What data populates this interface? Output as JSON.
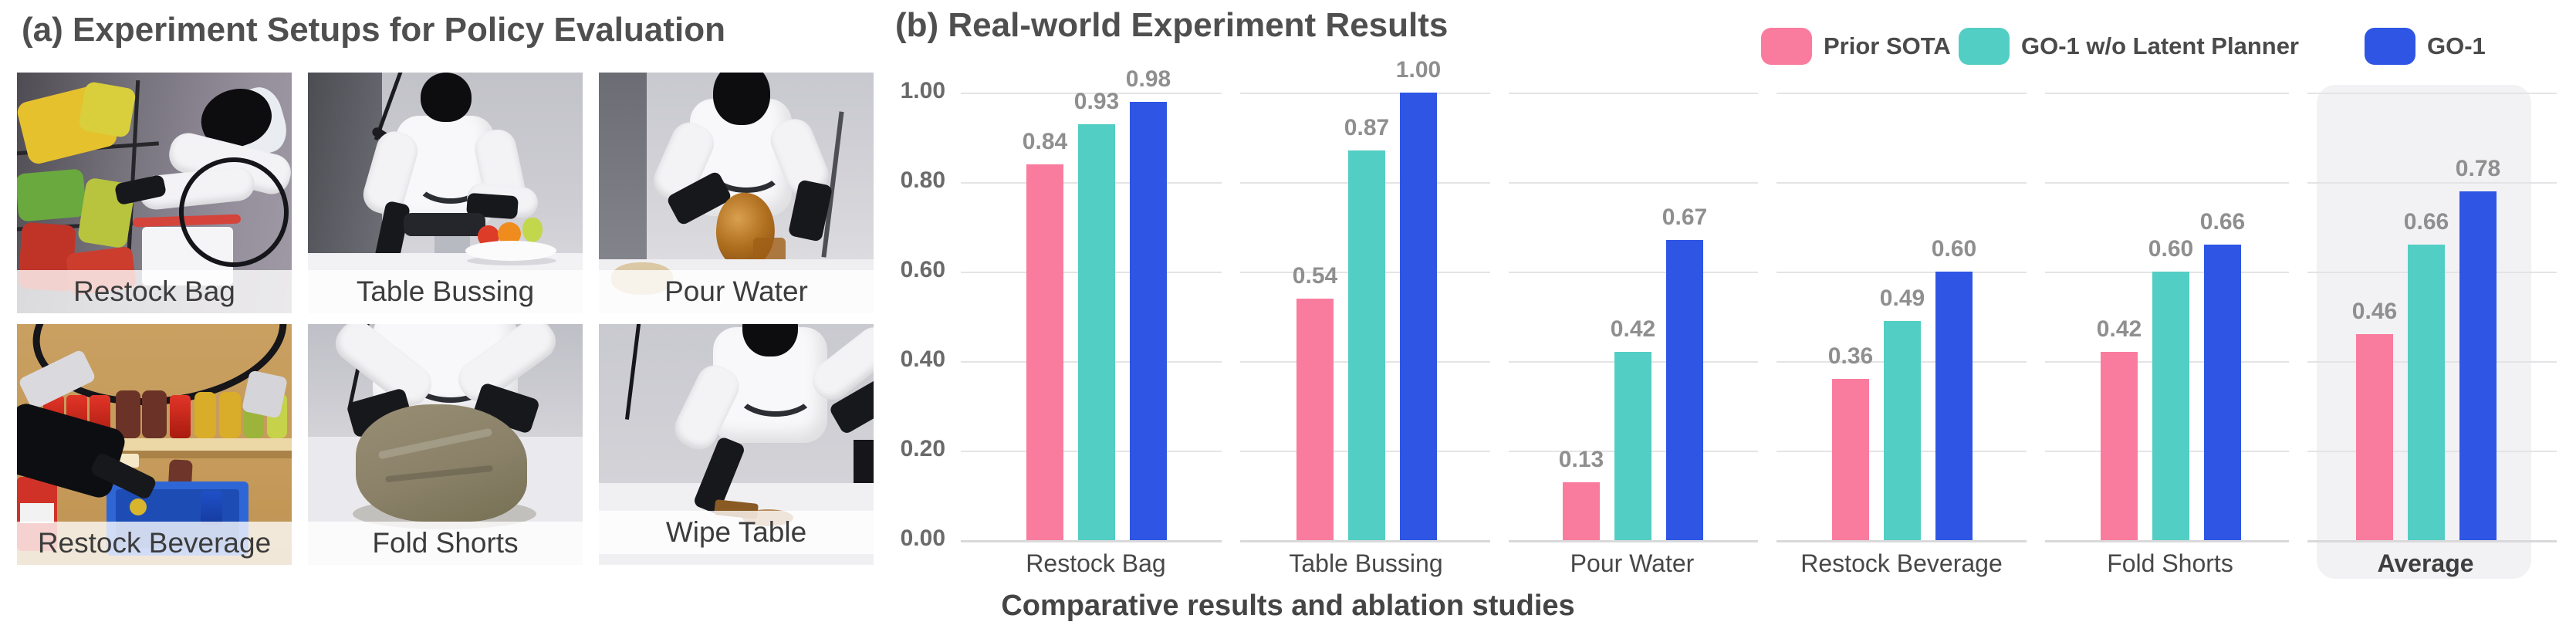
{
  "panel_a": {
    "title": "(a) Experiment Setups for Policy Evaluation",
    "photos": [
      {
        "label": "Restock Bag"
      },
      {
        "label": "Table Bussing"
      },
      {
        "label": "Pour Water"
      },
      {
        "label": "Restock Beverage"
      },
      {
        "label": "Fold Shorts"
      },
      {
        "label": "Wipe Table"
      }
    ]
  },
  "panel_b": {
    "title": "(b) Real-world Experiment Results",
    "caption": "Comparative results and ablation studies"
  },
  "chart_data": {
    "type": "bar",
    "title": "(b) Real-world Experiment Results",
    "categories": [
      "Restock Bag",
      "Table Bussing",
      "Pour Water",
      "Restock Beverage",
      "Fold Shorts",
      "Average"
    ],
    "series": [
      {
        "name": "Prior SOTA",
        "color": "#F97C9E",
        "values": [
          0.84,
          0.54,
          0.13,
          0.36,
          0.42,
          0.46
        ]
      },
      {
        "name": "GO-1 w/o Latent Planner",
        "color": "#53CEC4",
        "values": [
          0.93,
          0.87,
          0.42,
          0.49,
          0.6,
          0.66
        ]
      },
      {
        "name": "GO-1",
        "color": "#2E55E4",
        "values": [
          0.98,
          1.0,
          0.67,
          0.6,
          0.66,
          0.78
        ]
      }
    ],
    "yticks": [
      "1.00",
      "0.80",
      "0.60",
      "0.40",
      "0.20",
      "0.00"
    ],
    "ylim": [
      0,
      1.0
    ],
    "grid": true,
    "legend_position": "top-right",
    "highlight_category": "Average",
    "value_labels": true,
    "xlabel": "",
    "ylabel": ""
  }
}
